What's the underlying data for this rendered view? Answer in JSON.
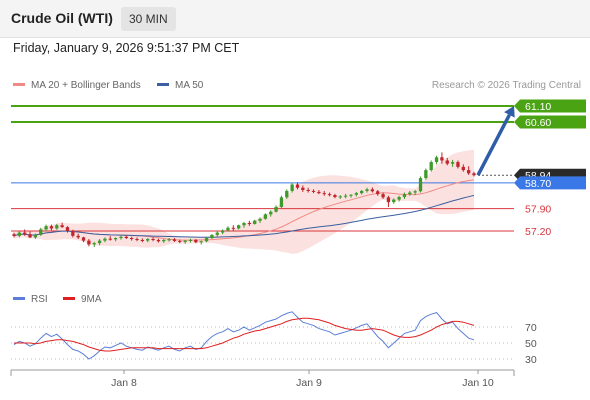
{
  "header": {
    "instrument": "Crude Oil (WTI)",
    "timeframe": "30 MIN"
  },
  "timestamp": "Friday, January 9, 2026 9:51:37 PM CET",
  "legend": {
    "ma20": {
      "label": "MA 20 + Bollinger Bands",
      "color": "#f08a84"
    },
    "ma50": {
      "label": "MA 50",
      "color": "#3b5fa0"
    },
    "rsi": {
      "label": "RSI",
      "color": "#5b7fd6"
    },
    "rsi_ma": {
      "label": "9MA",
      "color": "#e02020"
    }
  },
  "credit": "Research © 2026 Trading Central",
  "chart_data": [
    {
      "type": "candlestick",
      "x_ticks": [
        "Jan 8",
        "Jan 9",
        "Jan 10"
      ],
      "ylim": [
        56.55,
        61.35
      ],
      "levels": [
        {
          "value": 61.1,
          "label": "61.10",
          "color": "#4aa312",
          "kind": "target"
        },
        {
          "value": 60.6,
          "label": "60.60",
          "color": "#4aa312",
          "kind": "target"
        },
        {
          "value": 58.94,
          "label": "58.94",
          "color": "#2a2a2a",
          "kind": "last"
        },
        {
          "value": 58.7,
          "label": "58.70",
          "color": "#3b78e7",
          "kind": "pivot"
        },
        {
          "value": 57.9,
          "label": "57.90",
          "color": "#d9363e",
          "kind": "support"
        },
        {
          "value": 57.2,
          "label": "57.20",
          "color": "#d9363e",
          "kind": "support"
        }
      ],
      "candles": [
        [
          57.1,
          57.15,
          57.0,
          57.05
        ],
        [
          57.05,
          57.2,
          57.0,
          57.15
        ],
        [
          57.15,
          57.25,
          57.05,
          57.1
        ],
        [
          57.1,
          57.18,
          56.98,
          57.0
        ],
        [
          57.0,
          57.12,
          56.95,
          57.08
        ],
        [
          57.08,
          57.3,
          57.05,
          57.25
        ],
        [
          57.25,
          57.4,
          57.2,
          57.35
        ],
        [
          57.35,
          57.4,
          57.22,
          57.28
        ],
        [
          57.28,
          57.42,
          57.24,
          57.38
        ],
        [
          57.38,
          57.46,
          57.3,
          57.32
        ],
        [
          57.32,
          57.35,
          57.15,
          57.2
        ],
        [
          57.2,
          57.24,
          57.0,
          57.05
        ],
        [
          57.05,
          57.12,
          56.95,
          57.0
        ],
        [
          57.0,
          57.02,
          56.85,
          56.9
        ],
        [
          56.9,
          56.95,
          56.72,
          56.78
        ],
        [
          56.78,
          56.86,
          56.7,
          56.82
        ],
        [
          56.82,
          56.95,
          56.76,
          56.9
        ],
        [
          56.9,
          57.0,
          56.85,
          56.96
        ],
        [
          56.96,
          57.04,
          56.9,
          56.94
        ],
        [
          56.94,
          57.0,
          56.88,
          56.98
        ],
        [
          56.98,
          57.05,
          56.93,
          57.02
        ],
        [
          57.02,
          57.06,
          56.95,
          56.98
        ],
        [
          56.98,
          57.02,
          56.9,
          56.95
        ],
        [
          56.95,
          57.0,
          56.88,
          56.92
        ],
        [
          56.92,
          56.97,
          56.85,
          56.9
        ],
        [
          56.9,
          56.98,
          56.85,
          56.95
        ],
        [
          56.95,
          57.0,
          56.88,
          56.92
        ],
        [
          56.92,
          56.96,
          56.84,
          56.88
        ],
        [
          56.88,
          56.95,
          56.83,
          56.92
        ],
        [
          56.92,
          56.98,
          56.87,
          56.94
        ],
        [
          56.94,
          56.98,
          56.86,
          56.89
        ],
        [
          56.89,
          56.93,
          56.82,
          56.86
        ],
        [
          56.86,
          56.92,
          56.8,
          56.9
        ],
        [
          56.9,
          56.96,
          56.84,
          56.92
        ],
        [
          56.92,
          56.95,
          56.82,
          56.85
        ],
        [
          56.85,
          56.9,
          56.78,
          56.88
        ],
        [
          56.88,
          57.0,
          56.85,
          56.98
        ],
        [
          56.98,
          57.1,
          56.95,
          57.08
        ],
        [
          57.08,
          57.2,
          57.02,
          57.15
        ],
        [
          57.15,
          57.25,
          57.1,
          57.22
        ],
        [
          57.22,
          57.35,
          57.18,
          57.3
        ],
        [
          57.3,
          57.38,
          57.2,
          57.28
        ],
        [
          57.28,
          57.4,
          57.25,
          57.38
        ],
        [
          57.38,
          57.48,
          57.3,
          57.45
        ],
        [
          57.45,
          57.52,
          57.36,
          57.42
        ],
        [
          57.42,
          57.55,
          57.4,
          57.52
        ],
        [
          57.52,
          57.62,
          57.45,
          57.58
        ],
        [
          57.58,
          57.75,
          57.55,
          57.72
        ],
        [
          57.72,
          57.85,
          57.65,
          57.8
        ],
        [
          57.8,
          58.0,
          57.78,
          57.95
        ],
        [
          57.95,
          58.3,
          57.9,
          58.25
        ],
        [
          58.25,
          58.5,
          58.2,
          58.45
        ],
        [
          58.45,
          58.7,
          58.4,
          58.65
        ],
        [
          58.65,
          58.72,
          58.5,
          58.55
        ],
        [
          58.55,
          58.62,
          58.42,
          58.48
        ],
        [
          58.48,
          58.55,
          58.4,
          58.45
        ],
        [
          58.45,
          58.5,
          58.38,
          58.42
        ],
        [
          58.42,
          58.48,
          58.35,
          58.38
        ],
        [
          58.38,
          58.45,
          58.3,
          58.35
        ],
        [
          58.35,
          58.4,
          58.28,
          58.32
        ],
        [
          58.32,
          58.36,
          58.22,
          58.26
        ],
        [
          58.26,
          58.32,
          58.2,
          58.28
        ],
        [
          58.28,
          58.36,
          58.22,
          58.3
        ],
        [
          58.3,
          58.35,
          58.24,
          58.33
        ],
        [
          58.33,
          58.42,
          58.28,
          58.38
        ],
        [
          58.38,
          58.48,
          58.34,
          58.45
        ],
        [
          58.45,
          58.55,
          58.4,
          58.5
        ],
        [
          58.5,
          58.56,
          58.4,
          58.44
        ],
        [
          58.44,
          58.48,
          58.3,
          58.35
        ],
        [
          58.35,
          58.4,
          58.2,
          58.25
        ],
        [
          58.25,
          58.3,
          57.95,
          58.1
        ],
        [
          58.1,
          58.22,
          58.05,
          58.18
        ],
        [
          58.18,
          58.3,
          58.12,
          58.26
        ],
        [
          58.26,
          58.4,
          58.2,
          58.35
        ],
        [
          58.35,
          58.45,
          58.3,
          58.4
        ],
        [
          58.4,
          58.48,
          58.32,
          58.44
        ],
        [
          58.44,
          58.9,
          58.4,
          58.85
        ],
        [
          58.85,
          59.15,
          58.8,
          59.1
        ],
        [
          59.1,
          59.4,
          59.05,
          59.35
        ],
        [
          59.35,
          59.55,
          59.28,
          59.5
        ],
        [
          59.5,
          59.65,
          59.3,
          59.4
        ],
        [
          59.4,
          59.48,
          59.25,
          59.3
        ],
        [
          59.3,
          59.42,
          59.2,
          59.35
        ],
        [
          59.35,
          59.4,
          59.15,
          59.2
        ],
        [
          59.2,
          59.28,
          59.05,
          59.1
        ],
        [
          59.1,
          59.22,
          58.95,
          59.0
        ],
        [
          59.0,
          59.05,
          58.9,
          58.94
        ]
      ],
      "projection": {
        "from": 58.94,
        "to": 61.1
      }
    },
    {
      "type": "line",
      "series": [
        {
          "name": "RSI",
          "values": [
            48,
            52,
            50,
            46,
            49,
            56,
            62,
            58,
            61,
            55,
            48,
            42,
            40,
            36,
            30,
            34,
            40,
            45,
            44,
            47,
            50,
            46,
            44,
            42,
            41,
            45,
            43,
            41,
            44,
            46,
            42,
            40,
            44,
            46,
            42,
            44,
            52,
            58,
            62,
            64,
            68,
            64,
            66,
            70,
            66,
            69,
            72,
            76,
            78,
            80,
            84,
            87,
            89,
            82,
            76,
            74,
            72,
            68,
            66,
            64,
            60,
            62,
            64,
            66,
            69,
            72,
            74,
            66,
            58,
            52,
            44,
            50,
            56,
            62,
            64,
            66,
            78,
            83,
            86,
            88,
            80,
            74,
            76,
            68,
            62,
            56,
            54
          ]
        },
        {
          "name": "9MA",
          "values": [
            50,
            50,
            50,
            50,
            49,
            50,
            52,
            53,
            54,
            54,
            53,
            52,
            50,
            48,
            45,
            43,
            41,
            40,
            40,
            41,
            42,
            43,
            44,
            44,
            44,
            44,
            44,
            43,
            43,
            43,
            43,
            43,
            43,
            43,
            43,
            43,
            44,
            46,
            48,
            50,
            53,
            56,
            58,
            61,
            63,
            65,
            66,
            68,
            70,
            72,
            74,
            77,
            79,
            80,
            81,
            81,
            80,
            79,
            77,
            75,
            72,
            70,
            68,
            67,
            66,
            66,
            67,
            68,
            67,
            66,
            63,
            60,
            58,
            57,
            57,
            58,
            60,
            63,
            66,
            70,
            73,
            75,
            77,
            77,
            76,
            74,
            72
          ]
        }
      ],
      "ylim": [
        0,
        100
      ],
      "y_ticks": [
        70,
        50,
        30
      ]
    }
  ]
}
